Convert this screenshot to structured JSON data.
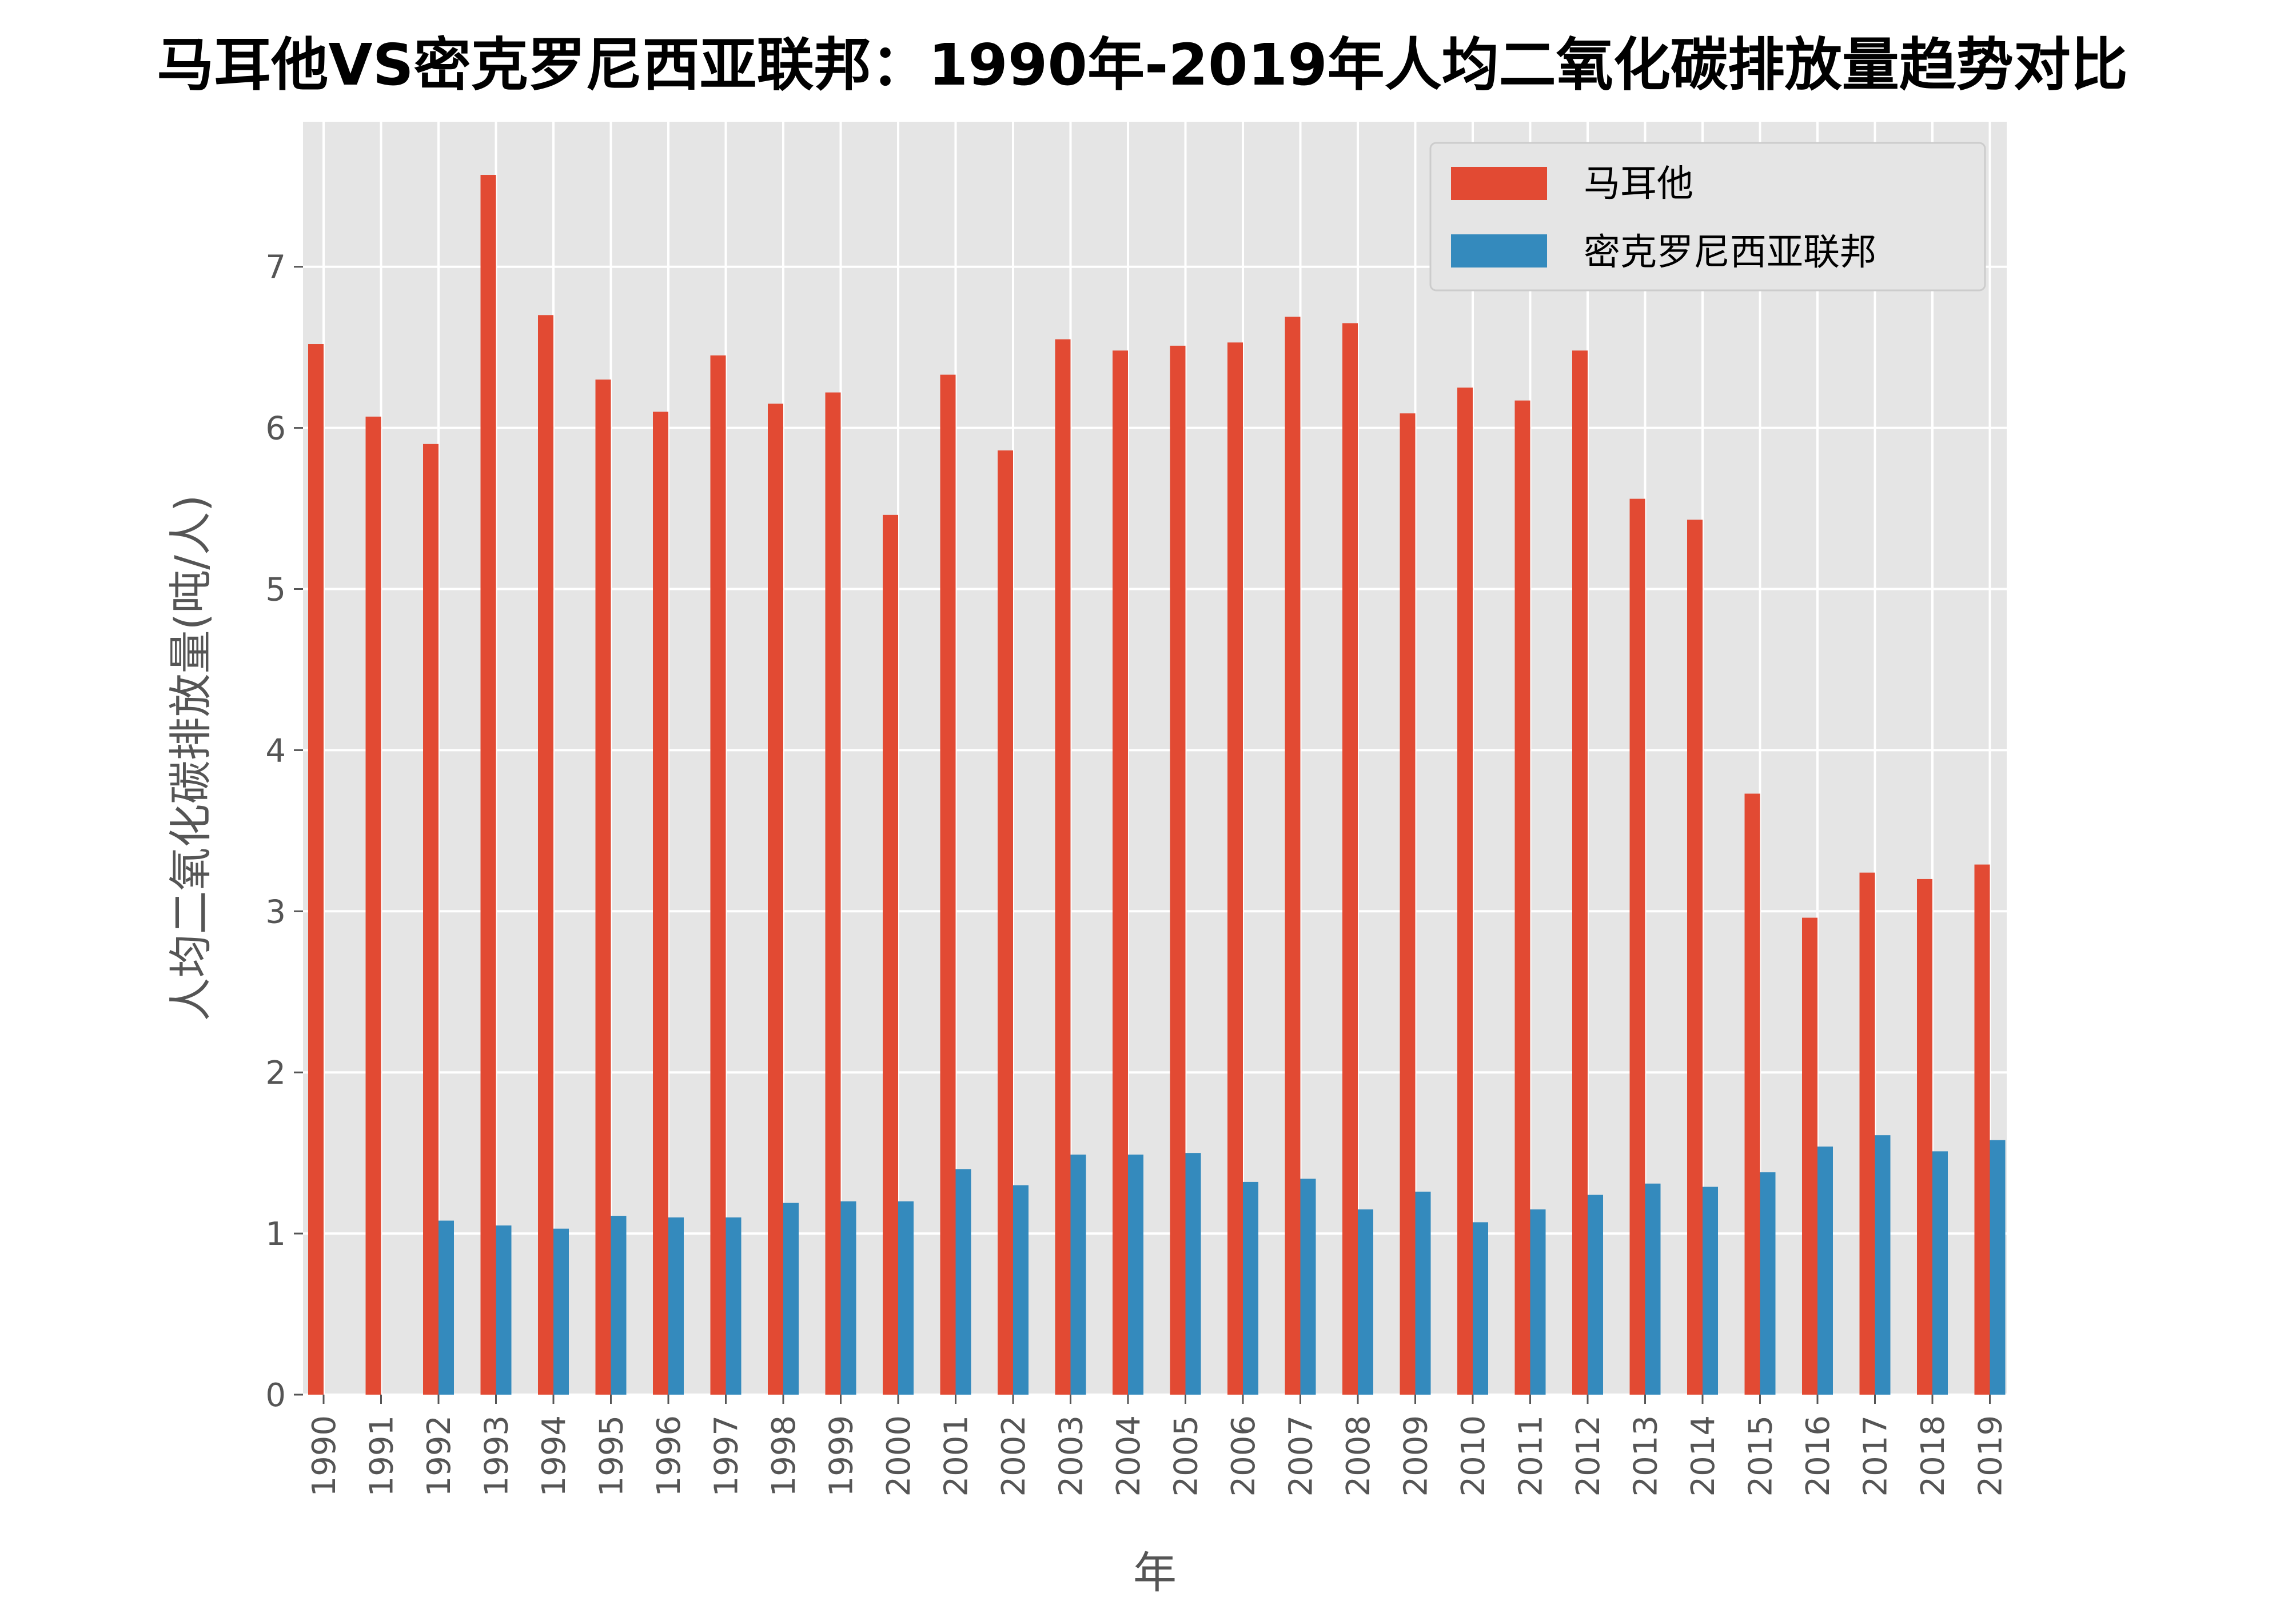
{
  "chart_data": {
    "type": "bar",
    "title": "马耳他VS密克罗尼西亚联邦：1990年-2019年人均二氧化碳排放量趋势对比",
    "xlabel": "年",
    "ylabel": "人均二氧化碳排放量(吨/人)",
    "categories": [
      "1990",
      "1991",
      "1992",
      "1993",
      "1994",
      "1995",
      "1996",
      "1997",
      "1998",
      "1999",
      "2000",
      "2001",
      "2002",
      "2003",
      "2004",
      "2005",
      "2006",
      "2007",
      "2008",
      "2009",
      "2010",
      "2011",
      "2012",
      "2013",
      "2014",
      "2015",
      "2016",
      "2017",
      "2018",
      "2019"
    ],
    "series": [
      {
        "name": "马耳他",
        "color": "#E24A33",
        "values": [
          6.52,
          6.07,
          5.9,
          7.57,
          6.7,
          6.3,
          6.1,
          6.45,
          6.15,
          6.22,
          5.46,
          6.33,
          5.86,
          6.55,
          6.48,
          6.51,
          6.53,
          6.69,
          6.65,
          6.09,
          6.25,
          6.17,
          6.48,
          5.56,
          5.43,
          3.73,
          2.96,
          3.24,
          3.2,
          3.29
        ]
      },
      {
        "name": "密克罗尼西亚联邦",
        "color": "#348ABD",
        "values": [
          null,
          null,
          1.08,
          1.05,
          1.03,
          1.11,
          1.1,
          1.1,
          1.19,
          1.2,
          1.2,
          1.4,
          1.3,
          1.49,
          1.49,
          1.5,
          1.32,
          1.34,
          1.15,
          1.26,
          1.07,
          1.15,
          1.24,
          1.31,
          1.29,
          1.38,
          1.54,
          1.61,
          1.51,
          1.58
        ]
      }
    ],
    "yticks": [
      "0",
      "1",
      "2",
      "3",
      "4",
      "5",
      "6",
      "7"
    ],
    "ylim": [
      0,
      7.9
    ],
    "grid": true,
    "legend_position": "top-right",
    "plot_background": "#E5E5E5"
  }
}
